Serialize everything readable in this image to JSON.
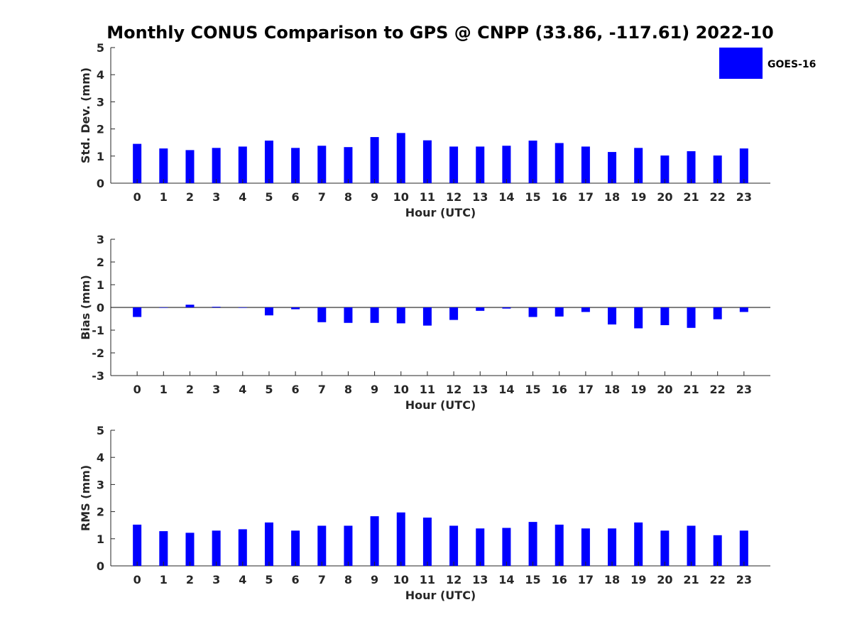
{
  "title": "Monthly CONUS Comparison to GPS @ CNPP (33.86, -117.61) 2022-10",
  "legend": {
    "label": "GOES-16",
    "color": "#0000ff",
    "position": "top-right"
  },
  "chart_data": [
    {
      "type": "bar",
      "xlabel": "Hour (UTC)",
      "ylabel": "Std. Dev. (mm)",
      "ylim": [
        0,
        5
      ],
      "yticks": [
        "0",
        "1",
        "2",
        "3",
        "4",
        "5"
      ],
      "categories": [
        "0",
        "1",
        "2",
        "3",
        "4",
        "5",
        "6",
        "7",
        "8",
        "9",
        "10",
        "11",
        "12",
        "13",
        "14",
        "15",
        "16",
        "17",
        "18",
        "19",
        "20",
        "21",
        "22",
        "23"
      ],
      "series": [
        {
          "name": "GOES-16",
          "color": "#0000ff",
          "values": [
            1.45,
            1.28,
            1.22,
            1.3,
            1.35,
            1.57,
            1.3,
            1.38,
            1.33,
            1.7,
            1.85,
            1.58,
            1.35,
            1.35,
            1.38,
            1.57,
            1.48,
            1.35,
            1.15,
            1.3,
            1.02,
            1.18,
            1.02,
            1.28
          ]
        }
      ]
    },
    {
      "type": "bar",
      "xlabel": "Hour (UTC)",
      "ylabel": "Bias (mm)",
      "ylim": [
        -3,
        3
      ],
      "yticks": [
        "-3",
        "-2",
        "-1",
        "0",
        "1",
        "2",
        "3"
      ],
      "zero_line": true,
      "categories": [
        "0",
        "1",
        "2",
        "3",
        "4",
        "5",
        "6",
        "7",
        "8",
        "9",
        "10",
        "11",
        "12",
        "13",
        "14",
        "15",
        "16",
        "17",
        "18",
        "19",
        "20",
        "21",
        "22",
        "23"
      ],
      "series": [
        {
          "name": "GOES-16",
          "color": "#0000ff",
          "values": [
            -0.42,
            -0.02,
            0.12,
            0.03,
            -0.02,
            -0.35,
            -0.08,
            -0.65,
            -0.68,
            -0.68,
            -0.7,
            -0.8,
            -0.55,
            -0.15,
            -0.05,
            -0.42,
            -0.4,
            -0.2,
            -0.75,
            -0.92,
            -0.78,
            -0.9,
            -0.52,
            -0.2
          ]
        }
      ]
    },
    {
      "type": "bar",
      "xlabel": "Hour (UTC)",
      "ylabel": "RMS (mm)",
      "ylim": [
        0,
        5
      ],
      "yticks": [
        "0",
        "1",
        "2",
        "3",
        "4",
        "5"
      ],
      "categories": [
        "0",
        "1",
        "2",
        "3",
        "4",
        "5",
        "6",
        "7",
        "8",
        "9",
        "10",
        "11",
        "12",
        "13",
        "14",
        "15",
        "16",
        "17",
        "18",
        "19",
        "20",
        "21",
        "22",
        "23"
      ],
      "series": [
        {
          "name": "GOES-16",
          "color": "#0000ff",
          "values": [
            1.52,
            1.28,
            1.22,
            1.3,
            1.35,
            1.6,
            1.3,
            1.48,
            1.48,
            1.83,
            1.97,
            1.78,
            1.48,
            1.38,
            1.4,
            1.62,
            1.52,
            1.38,
            1.38,
            1.6,
            1.3,
            1.48,
            1.13,
            1.3
          ]
        }
      ]
    }
  ]
}
